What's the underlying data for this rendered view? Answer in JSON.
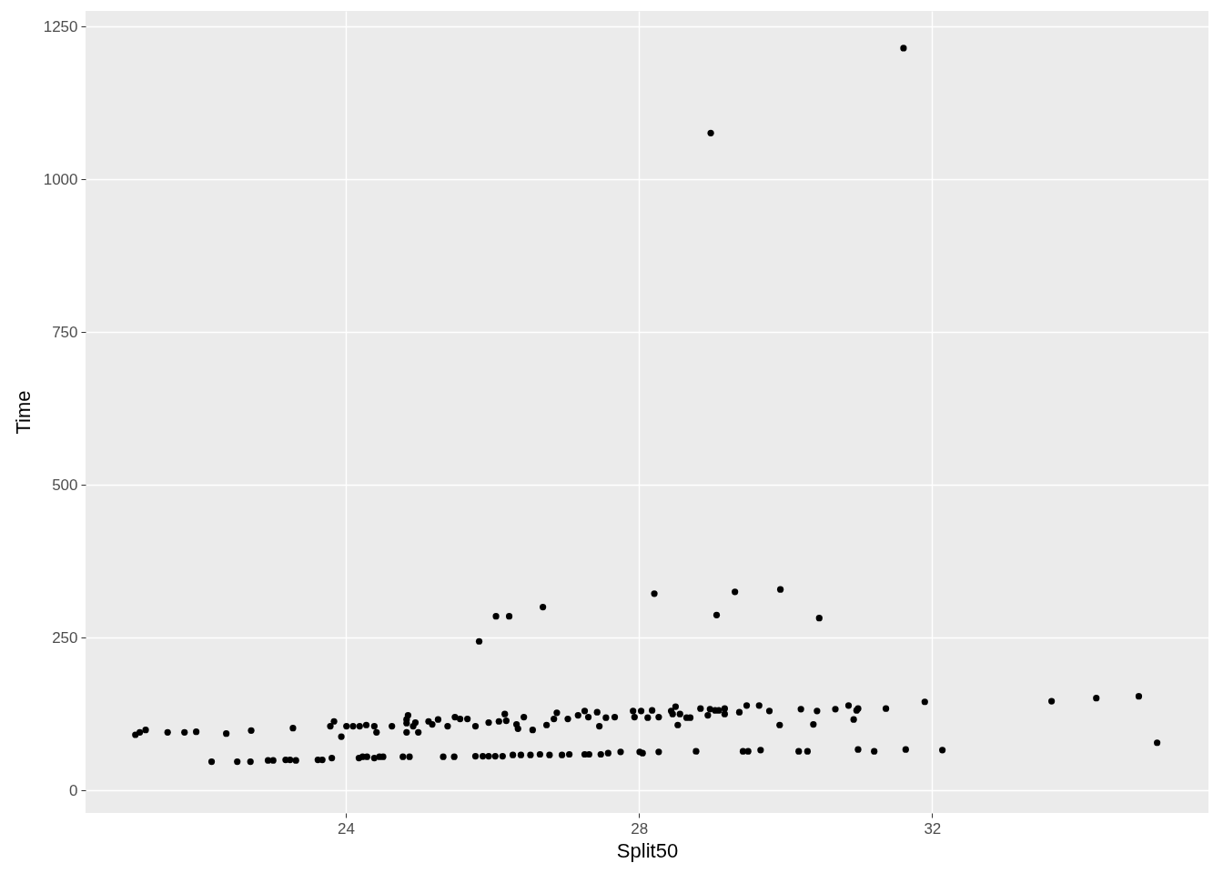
{
  "chart_data": {
    "type": "scatter",
    "xlabel": "Split50",
    "ylabel": "Time",
    "xlim": [
      20.45,
      35.77
    ],
    "ylim": [
      -37,
      1276
    ],
    "xticks": [
      24,
      28,
      32
    ],
    "yticks": [
      0,
      250,
      500,
      750,
      1000,
      1250
    ],
    "grid": true,
    "marker": "circle",
    "series": [
      {
        "color": "#000000",
        "x": [
          21.13,
          21.19,
          21.27,
          21.57,
          21.8,
          21.96,
          22.37,
          22.71,
          23.28,
          23.79,
          23.84,
          23.94,
          24.01,
          24.1,
          24.19,
          24.28,
          24.39,
          24.42,
          24.63,
          24.83,
          24.85,
          24.83,
          24.92,
          24.95,
          24.83,
          24.99,
          25.13,
          25.18,
          25.26,
          25.39,
          25.49,
          25.56,
          25.66,
          25.77,
          25.95,
          26.09,
          26.19,
          26.17,
          26.33,
          26.35,
          26.43,
          26.55,
          26.74,
          26.84,
          26.88,
          27.03,
          27.17,
          27.26,
          27.31,
          27.43,
          27.46,
          27.55,
          27.67,
          27.92,
          27.94,
          28.03,
          28.12,
          28.18,
          28.27,
          28.44,
          28.46,
          28.5,
          28.53,
          28.56,
          28.65,
          28.7,
          28.84,
          28.94,
          28.97,
          29.04,
          29.09,
          29.17,
          29.17,
          29.37,
          29.47,
          29.64,
          29.78,
          29.92,
          30.21,
          30.38,
          30.43,
          30.68,
          30.86,
          30.97,
          30.93,
          30.99,
          31.37,
          31.9,
          33.63,
          34.24,
          34.82,
          35.07,
          22.17,
          22.52,
          22.7,
          22.94,
          23.01,
          23.18,
          23.24,
          23.32,
          23.62,
          23.68,
          23.81,
          24.18,
          24.23,
          24.29,
          24.39,
          24.46,
          24.51,
          24.78,
          24.87,
          25.33,
          25.48,
          25.77,
          25.87,
          25.95,
          26.04,
          26.14,
          26.28,
          26.39,
          26.52,
          26.65,
          26.78,
          26.95,
          27.05,
          27.26,
          27.32,
          27.48,
          27.58,
          27.75,
          28.01,
          28.05,
          28.27,
          28.78,
          29.42,
          29.49,
          29.66,
          30.18,
          30.3,
          30.99,
          31.21,
          31.64,
          32.14,
          25.82,
          26.05,
          26.23,
          26.69,
          28.21,
          29.31,
          29.06,
          29.93,
          30.46,
          28.98,
          31.61
        ],
        "values": [
          91,
          95,
          99,
          95,
          95,
          96,
          93,
          98,
          102,
          105,
          113,
          88,
          105,
          105,
          105,
          107,
          105,
          95,
          105,
          110,
          123,
          116,
          105,
          111,
          95,
          95,
          113,
          108,
          116,
          105,
          120,
          117,
          117,
          105,
          111,
          113,
          114,
          125,
          108,
          101,
          120,
          99,
          107,
          117,
          127,
          117,
          123,
          130,
          120,
          128,
          105,
          119,
          120,
          130,
          120,
          130,
          119,
          131,
          120,
          130,
          125,
          137,
          107,
          125,
          119,
          119,
          134,
          123,
          133,
          131,
          131,
          125,
          134,
          128,
          139,
          139,
          130,
          107,
          133,
          108,
          130,
          133,
          139,
          131,
          116,
          134,
          134,
          145,
          146,
          151,
          154,
          78,
          47,
          47,
          47,
          49,
          49,
          50,
          50,
          49,
          50,
          50,
          53,
          53,
          55,
          55,
          53,
          55,
          55,
          55,
          55,
          55,
          55,
          56,
          56,
          56,
          56,
          56,
          58,
          58,
          58,
          59,
          58,
          58,
          59,
          59,
          59,
          59,
          61,
          63,
          63,
          61,
          63,
          64,
          64,
          64,
          66,
          64,
          64,
          67,
          64,
          67,
          66,
          244,
          285,
          285,
          300,
          322,
          325,
          287,
          329,
          282,
          1076,
          1215
        ]
      }
    ]
  }
}
